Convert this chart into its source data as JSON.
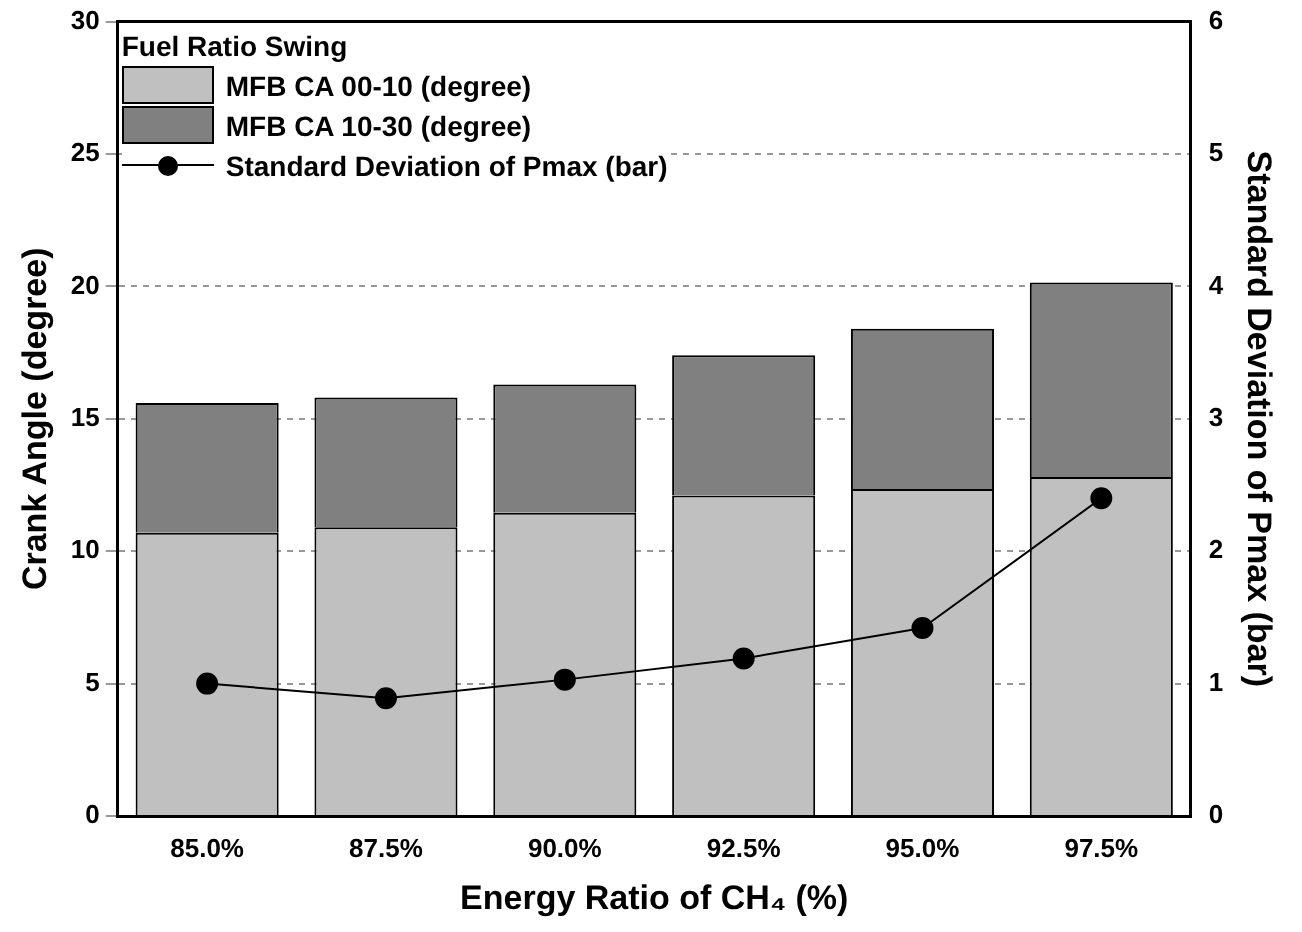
{
  "chart_data": {
    "type": "bar",
    "stacked": true,
    "xlabel": "Energy Ratio of CH₄ (%)",
    "ylabel": "Crank Angle (degree)",
    "y2label": "Standard Deviation of Pmax (bar)",
    "legend_title": "Fuel Ratio Swing",
    "legend": "top left",
    "grid": "y",
    "categories": [
      "85.0%",
      "87.5%",
      "90.0%",
      "92.5%",
      "95.0%",
      "97.5%"
    ],
    "series": [
      {
        "name": "MFB CA 00-10 (degree)",
        "color": "#c0c0c0",
        "values": [
          10.7,
          10.9,
          11.45,
          12.1,
          12.35,
          12.8
        ]
      },
      {
        "name": "MFB CA 10-30 (degree)",
        "color": "#808080",
        "values": [
          4.9,
          4.9,
          4.85,
          5.3,
          6.05,
          7.35
        ]
      },
      {
        "name": "Standard Deviation of Pmax (bar)",
        "type": "line",
        "axis": "y2",
        "color": "#000000",
        "marker": "circle",
        "values": [
          1.0,
          0.89,
          1.03,
          1.19,
          1.42,
          2.4
        ]
      }
    ],
    "ylim": [
      0,
      30
    ],
    "yticks": [
      0,
      5,
      10,
      15,
      20,
      25,
      30
    ],
    "y2lim": [
      0,
      6
    ],
    "y2ticks": [
      0,
      1,
      2,
      3,
      4,
      5,
      6
    ]
  }
}
